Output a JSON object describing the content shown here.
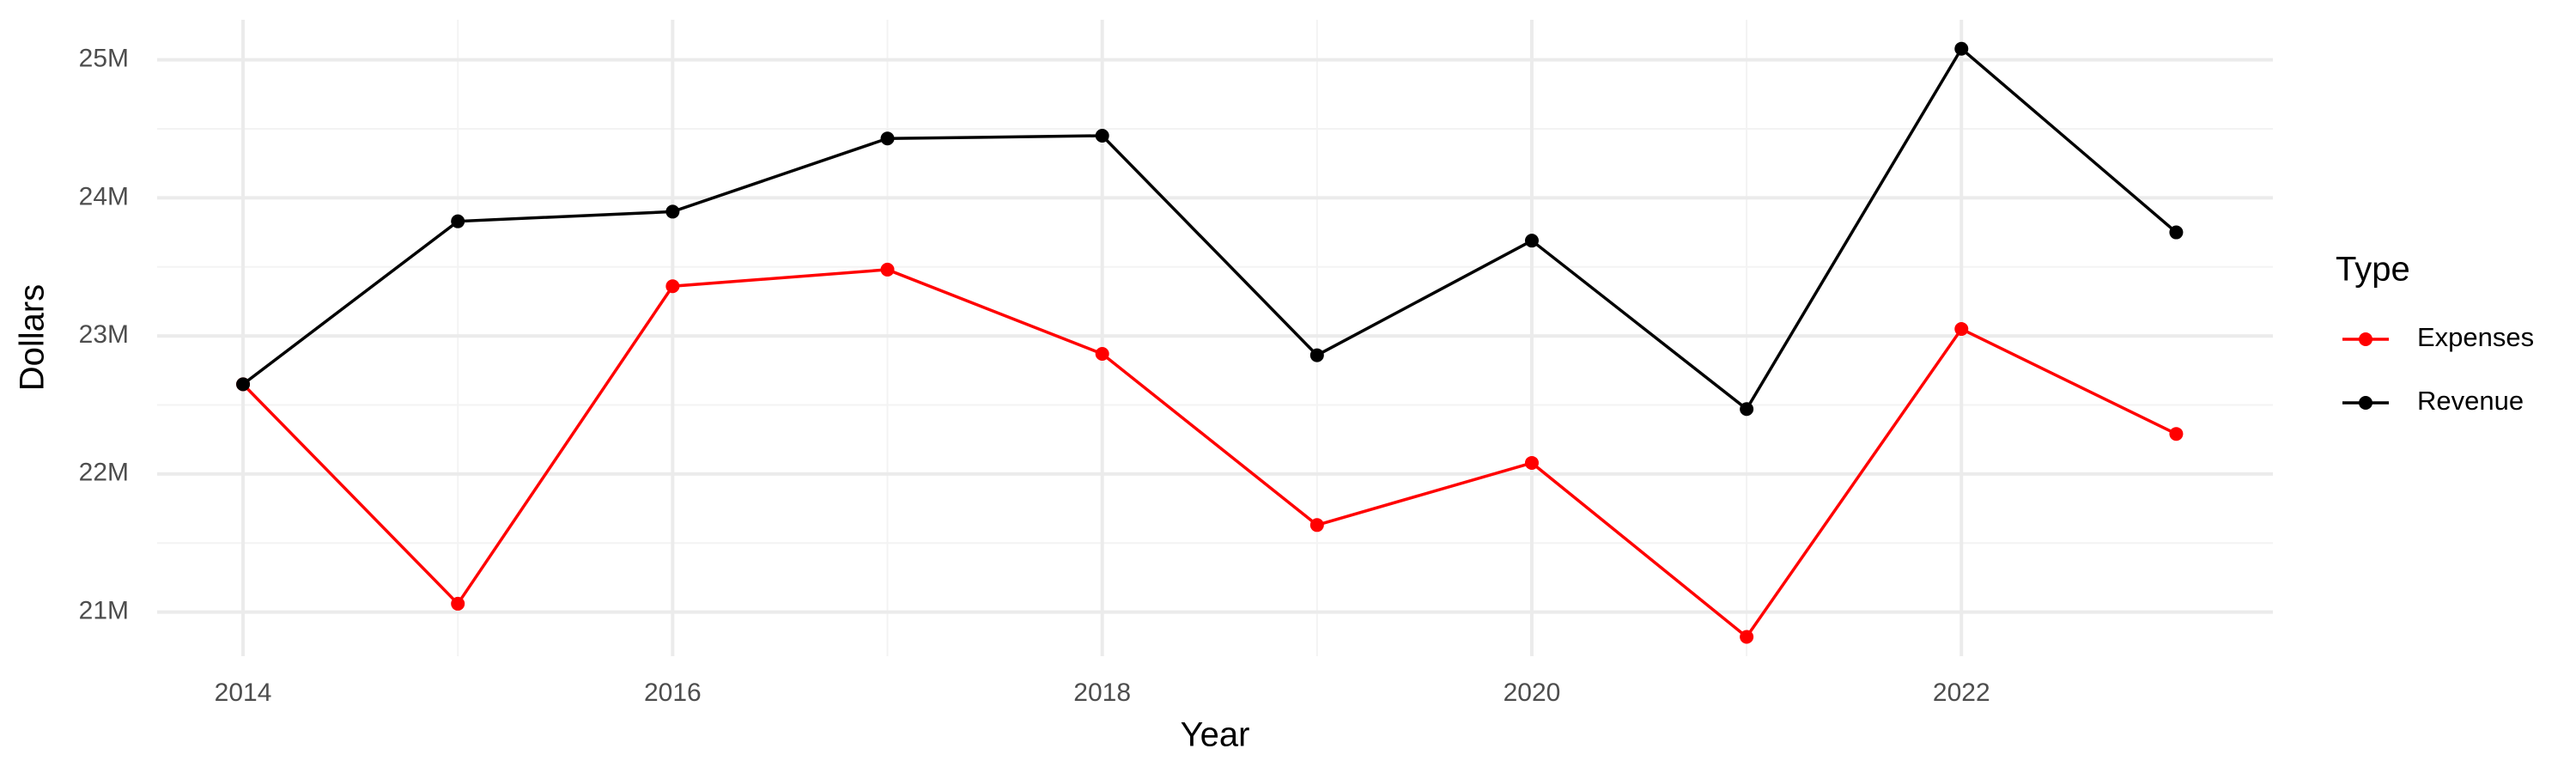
{
  "chart_data": {
    "type": "line",
    "x_label": "Year",
    "y_label": "Dollars",
    "legend_title": "Type",
    "x": [
      2014,
      2015,
      2016,
      2017,
      2018,
      2019,
      2020,
      2021,
      2022,
      2023
    ],
    "series": [
      {
        "name": "Expenses",
        "color": "#ff0000",
        "values": [
          22650000,
          21060000,
          23360000,
          23480000,
          22870000,
          21630000,
          22080000,
          20820000,
          23050000,
          22290000
        ]
      },
      {
        "name": "Revenue",
        "color": "#000000",
        "values": [
          22650000,
          23830000,
          23900000,
          24430000,
          24450000,
          22860000,
          23690000,
          22470000,
          25080000,
          23750000
        ]
      }
    ],
    "xlim": [
      2013.6,
      2023.45
    ],
    "xticks": [
      2014,
      2016,
      2018,
      2020,
      2022
    ],
    "ylim": [
      20680000,
      25290000
    ],
    "yticks": [
      {
        "value": 21000000,
        "label": "21M"
      },
      {
        "value": 22000000,
        "label": "22M"
      },
      {
        "value": 23000000,
        "label": "23M"
      },
      {
        "value": 24000000,
        "label": "24M"
      },
      {
        "value": 25000000,
        "label": "25M"
      }
    ],
    "grid": true,
    "legend": "right"
  }
}
